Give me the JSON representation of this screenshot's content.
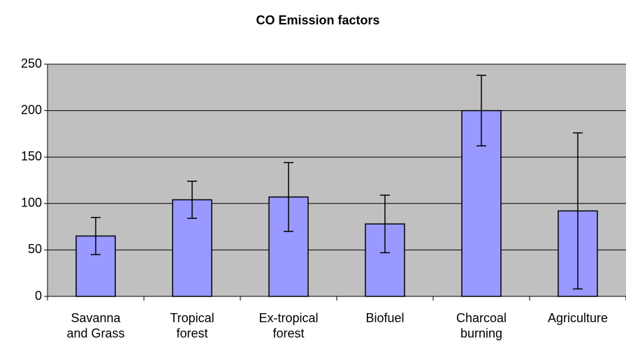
{
  "chart_data": {
    "type": "bar",
    "title": "CO Emission factors",
    "categories": [
      "Savanna and Grass",
      "Tropical forest",
      "Ex-tropical forest",
      "Biofuel",
      "Charcoal burning",
      "Agriculture"
    ],
    "values": [
      65,
      104,
      107,
      78,
      200,
      92
    ],
    "errors": [
      20,
      20,
      37,
      31,
      38,
      84
    ],
    "color": "#9999ff",
    "background": "#c0c0c0",
    "ylim": [
      0,
      250
    ],
    "yticks": [
      0,
      50,
      100,
      150,
      200,
      250
    ],
    "grid": true
  }
}
